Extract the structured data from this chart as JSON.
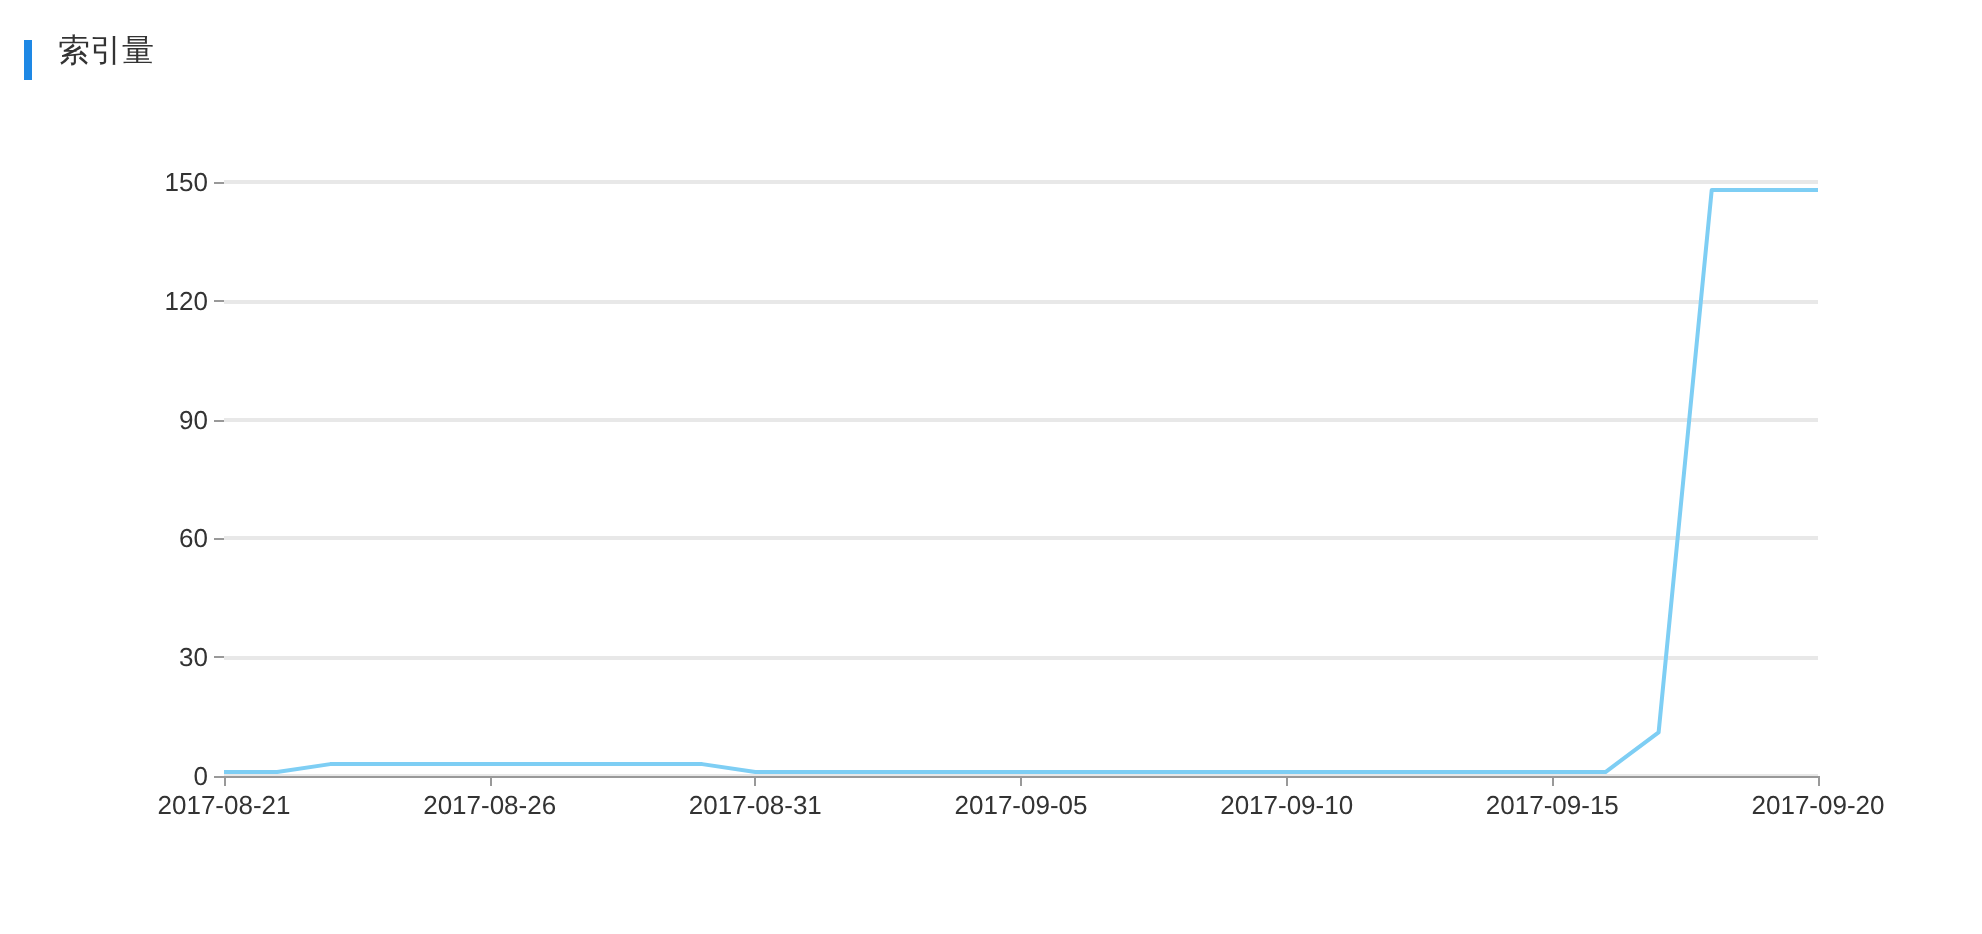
{
  "chart_data": {
    "type": "line",
    "title": "索引量",
    "marker": "none",
    "grid": "y",
    "x": [
      "2017-08-21",
      "2017-08-22",
      "2017-08-23",
      "2017-08-24",
      "2017-08-25",
      "2017-08-26",
      "2017-08-27",
      "2017-08-28",
      "2017-08-29",
      "2017-08-30",
      "2017-08-31",
      "2017-09-01",
      "2017-09-02",
      "2017-09-03",
      "2017-09-04",
      "2017-09-05",
      "2017-09-06",
      "2017-09-07",
      "2017-09-08",
      "2017-09-09",
      "2017-09-10",
      "2017-09-11",
      "2017-09-12",
      "2017-09-13",
      "2017-09-14",
      "2017-09-15",
      "2017-09-16",
      "2017-09-17",
      "2017-09-18",
      "2017-09-19",
      "2017-09-20"
    ],
    "series": [
      {
        "color": "#7ecef4",
        "values": [
          1,
          1,
          3,
          3,
          3,
          3,
          3,
          3,
          3,
          3,
          1,
          1,
          1,
          1,
          1,
          1,
          1,
          1,
          1,
          1,
          1,
          1,
          1,
          1,
          1,
          1,
          1,
          11,
          148,
          148,
          148
        ]
      }
    ],
    "xlim": [
      "2017-08-21",
      "2017-09-20"
    ],
    "xticks": [
      "2017-08-21",
      "2017-08-26",
      "2017-08-31",
      "2017-09-05",
      "2017-09-10",
      "2017-09-15",
      "2017-09-20"
    ],
    "ylim": [
      0,
      150
    ],
    "yticks": [
      0,
      30,
      60,
      90,
      120,
      150
    ]
  }
}
